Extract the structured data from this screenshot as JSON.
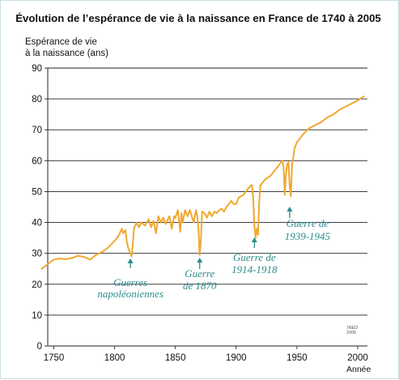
{
  "chart_data": {
    "type": "line",
    "title": "Évolution de l’espérance de vie à la naissance en France de 1740 à 2005",
    "ylabel_lines": [
      "Espérance de vie",
      "à la naissance (ans)"
    ],
    "xlabel": "Année",
    "xlim": [
      1745,
      2008
    ],
    "ylim": [
      0,
      90
    ],
    "x_ticks": [
      1750,
      1800,
      1850,
      1900,
      1950,
      2000
    ],
    "y_ticks": [
      0,
      10,
      20,
      30,
      40,
      50,
      60,
      70,
      80,
      90
    ],
    "grid": "horizontal",
    "series_color": "#f0a830",
    "source_lines": [
      "INED",
      "2006"
    ],
    "series": [
      {
        "x": [
          1740,
          1745,
          1750,
          1755,
          1760,
          1765,
          1770,
          1775,
          1780,
          1785,
          1790,
          1795,
          1800,
          1803,
          1806,
          1807,
          1809,
          1810,
          1811,
          1812,
          1813,
          1814,
          1815,
          1816,
          1818,
          1820,
          1822,
          1825,
          1828,
          1830,
          1832,
          1834,
          1836,
          1838,
          1840,
          1842,
          1845,
          1847,
          1849,
          1850,
          1852,
          1854,
          1855,
          1856,
          1858,
          1860,
          1862,
          1865,
          1867,
          1868,
          1869,
          1870,
          1871,
          1872,
          1874,
          1876,
          1878,
          1880,
          1882,
          1884,
          1886,
          1888,
          1890,
          1892,
          1894,
          1896,
          1898,
          1900,
          1902,
          1904,
          1906,
          1908,
          1910,
          1912,
          1913,
          1914,
          1915,
          1916,
          1917,
          1918,
          1919,
          1920,
          1922,
          1924,
          1926,
          1928,
          1930,
          1932,
          1934,
          1936,
          1938,
          1939,
          1940,
          1941,
          1942,
          1943,
          1944,
          1945,
          1946,
          1947,
          1948,
          1950,
          1955,
          1960,
          1965,
          1970,
          1975,
          1980,
          1985,
          1990,
          1995,
          2000,
          2005
        ],
        "values": [
          25,
          26.5,
          28,
          28.3,
          28.1,
          28.5,
          29.2,
          28.8,
          28,
          29.6,
          30.5,
          32,
          34,
          35.5,
          38,
          36.5,
          37.5,
          34,
          32,
          31,
          30,
          29,
          33,
          38,
          40,
          38.5,
          40,
          39,
          41,
          38.5,
          40.5,
          36.5,
          42,
          40,
          41.5,
          39.5,
          42,
          38,
          42,
          41.5,
          44,
          37,
          43,
          40,
          44,
          42,
          44,
          40,
          44,
          42,
          38,
          29.5,
          34,
          43.5,
          43,
          41.5,
          43.5,
          42,
          43.5,
          43,
          44,
          44.5,
          43.5,
          45,
          46,
          47,
          46,
          46,
          48,
          48.5,
          49,
          50,
          51,
          52,
          52,
          48,
          39,
          35,
          38,
          36,
          47,
          52,
          53,
          54,
          54.5,
          55,
          56,
          57,
          58,
          59,
          60,
          58,
          49,
          56,
          59,
          59.5,
          52,
          48.5,
          59,
          61,
          64,
          66,
          68.5,
          70.5,
          71.5,
          72.5,
          74,
          75,
          76.5,
          77.5,
          78.5,
          79.5,
          80.8
        ]
      }
    ],
    "annotations": [
      {
        "lines": [
          "Guerres",
          "napoléoniennes"
        ],
        "x": 1813
      },
      {
        "lines": [
          "Guerre",
          "de 1870"
        ],
        "x": 1870
      },
      {
        "lines": [
          "Guerre de",
          "1914-1918"
        ],
        "x": 1915
      },
      {
        "lines": [
          "Guerre de",
          "1939-1945"
        ],
        "x": 1944
      }
    ]
  }
}
